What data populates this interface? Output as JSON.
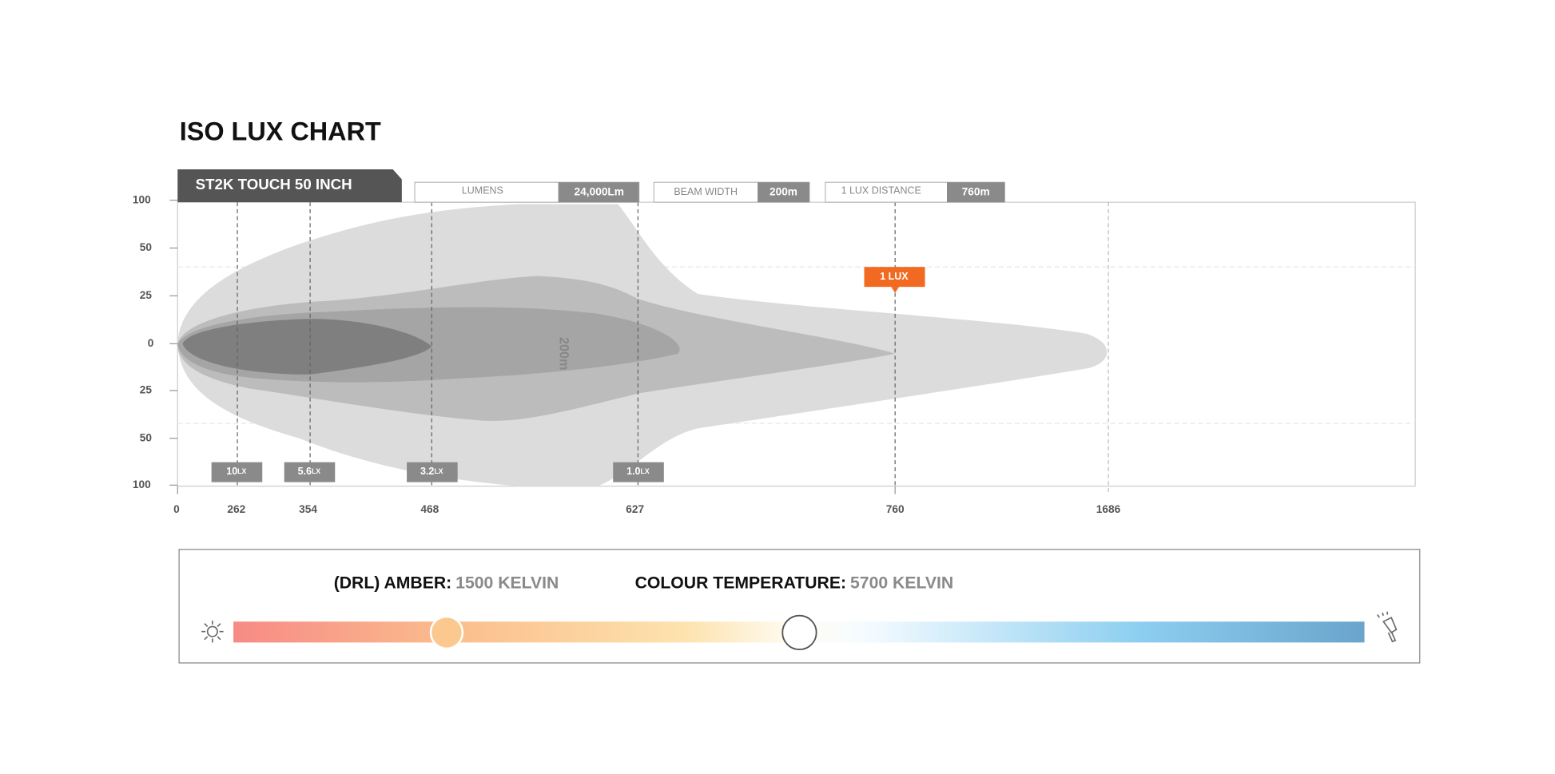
{
  "header": {
    "title": "ISO LUX CHART"
  },
  "product": {
    "name": "ST2K TOUCH 50 INCH"
  },
  "specs": [
    {
      "label": "LUMENS",
      "value": "24,000Lm"
    },
    {
      "label": "BEAM WIDTH",
      "value": "200m"
    },
    {
      "label": "1 LUX DISTANCE",
      "value": "760m"
    }
  ],
  "y_axis": {
    "labels": [
      "100",
      "50",
      "25",
      "0",
      "25",
      "50",
      "100"
    ]
  },
  "x_axis": {
    "labels": [
      "0",
      "262",
      "354",
      "468",
      "627",
      "760",
      "1686"
    ]
  },
  "lux_markers": [
    {
      "value": "10",
      "unit": "LX"
    },
    {
      "value": "5.6",
      "unit": "LX"
    },
    {
      "value": "3.2",
      "unit": "LX"
    },
    {
      "value": "1.0",
      "unit": "LX"
    }
  ],
  "callout": "1 LUX",
  "beam_label": "200m",
  "temperature": {
    "amber_label": "(DRL) AMBER:",
    "amber_value": "1500 KELVIN",
    "colour_label": "COLOUR TEMPERATURE:",
    "colour_value": "5700 KELVIN"
  }
}
